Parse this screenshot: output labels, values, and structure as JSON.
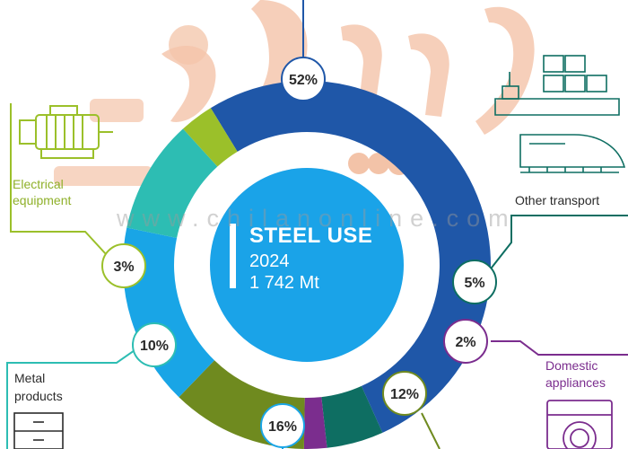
{
  "chart_data": {
    "type": "pie",
    "center": {
      "title": "STEEL USE",
      "year": "2024",
      "total": "1 742 Mt"
    },
    "slices": [
      {
        "label": "",
        "value": 52,
        "value_label": "52%",
        "color": "#1f57a8"
      },
      {
        "label": "Other transport",
        "value": 5,
        "value_label": "5%",
        "color": "#0e6e62"
      },
      {
        "label": "Domestic appliances",
        "value": 2,
        "value_label": "2%",
        "color": "#7b2d8e"
      },
      {
        "label": "",
        "value": 12,
        "value_label": "12%",
        "color": "#6f8a1f"
      },
      {
        "label": "",
        "value": 16,
        "value_label": "16%",
        "color": "#19a5e6"
      },
      {
        "label": "Metal products",
        "value": 10,
        "value_label": "10%",
        "color": "#2dbdb3"
      },
      {
        "label": "Electrical equipment",
        "value": 3,
        "value_label": "3%",
        "color": "#9bc02a"
      }
    ]
  },
  "labels": {
    "electrical": [
      "Electrical",
      "equipment"
    ],
    "other_transport": "Other transport",
    "metal": [
      "Metal",
      "products"
    ],
    "domestic": [
      "Domestic",
      "appliances"
    ]
  },
  "watermark": {
    "text": "www.chilanonline.com",
    "color": "#f2b99a"
  },
  "icons": [
    "motor-icon",
    "ship-icon",
    "train-icon",
    "cabinet-icon",
    "washing-machine-icon"
  ]
}
